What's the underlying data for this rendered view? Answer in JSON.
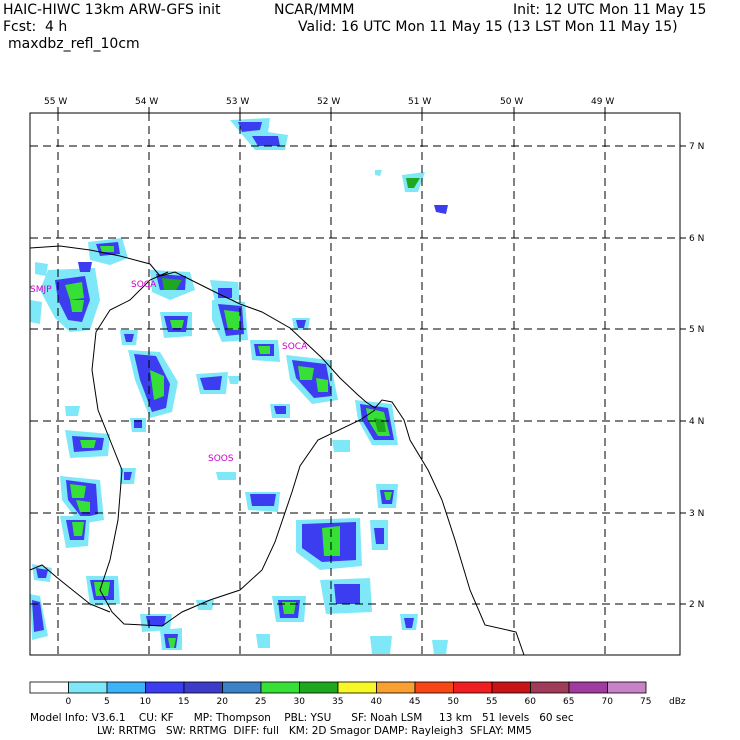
{
  "header": {
    "line1_left": "HAIC-HIWC 13km ARW-GFS init",
    "line1_mid": "NCAR/MMM",
    "line1_right": "Init: 12 UTC Mon 11 May 15",
    "fcst_label": "Fcst:",
    "fcst_value": "4 h",
    "valid": "Valid: 16 UTC Mon 11 May 15 (13 LST Mon 11 May 15)",
    "field": "maxdbz_refl_10cm"
  },
  "map": {
    "lon_labels": [
      "55 W",
      "54 W",
      "53 W",
      "52 W",
      "51 W",
      "50 W",
      "49 W"
    ],
    "lat_labels": [
      "7 N",
      "6 N",
      "5 N",
      "4 N",
      "3 N",
      "2 N"
    ],
    "sites": [
      "SMJP",
      "SOCA",
      "SOCA",
      "SOOS"
    ],
    "palette": {
      "lightblue": "#7fe8f8",
      "blue1": "#3c8ef8",
      "blue2": "#3c3cf0",
      "green": "#36e036",
      "darkgreen": "#1fa81f",
      "site": "#cc00cc"
    }
  },
  "colorbar": {
    "ticks": [
      "0",
      "5",
      "10",
      "15",
      "20",
      "25",
      "30",
      "35",
      "40",
      "45",
      "50",
      "55",
      "60",
      "65",
      "70",
      "75"
    ],
    "unit": "dBz",
    "colors": [
      "#ffffff",
      "#7fe8f8",
      "#3cb4f8",
      "#3c3cf0",
      "#3c3cc8",
      "#3c82c8",
      "#36e036",
      "#1fa81f",
      "#f8f828",
      "#f8a032",
      "#f84614",
      "#f01e1e",
      "#c81414",
      "#a03c5a",
      "#a03ca0",
      "#c882c8"
    ]
  },
  "footer": {
    "line1": "Model Info: V3.6.1    CU: KF      MP: Thompson    PBL: YSU      SF: Noah LSM     13 km   51 levels   60 sec",
    "line2": "LW: RRTMG   SW: RRTMG  DIFF: full   KM: 2D Smagor DAMP: Rayleigh3  SFLAY: MM5"
  }
}
